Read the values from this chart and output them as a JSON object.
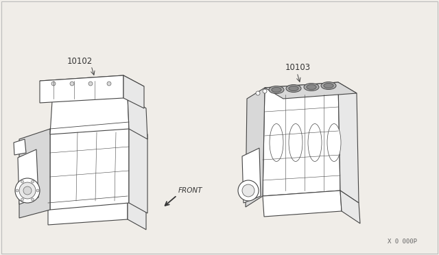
{
  "background_color": "#f0ede8",
  "border_color": "#bbbbbb",
  "label_10102": "10102",
  "label_10103": "10103",
  "label_front": "FRONT",
  "label_ref": "X 0 000P",
  "line_color": "#444444",
  "text_color": "#333333",
  "fig_width": 6.4,
  "fig_height": 3.72,
  "dpi": 100
}
